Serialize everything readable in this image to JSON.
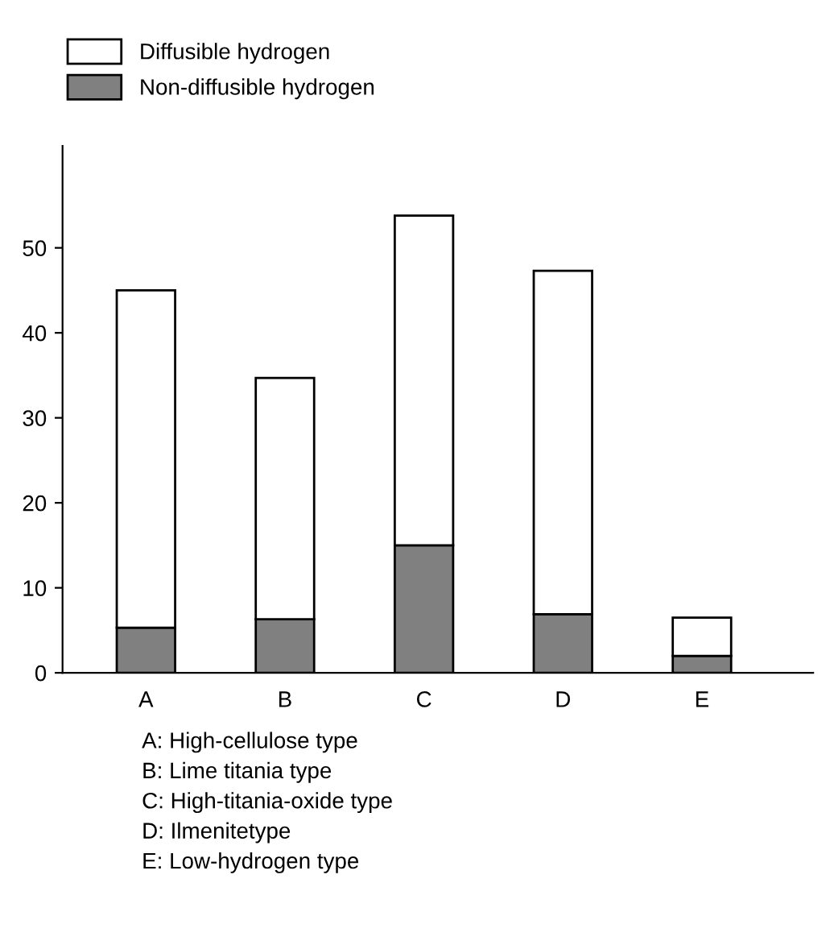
{
  "chart_data": {
    "type": "bar",
    "stacked": true,
    "categories": [
      "A",
      "B",
      "C",
      "D",
      "E"
    ],
    "series": [
      {
        "name": "Non-diffusible hydrogen",
        "color": "#808080",
        "values": [
          5.3,
          6.3,
          15.0,
          6.9,
          2.0
        ]
      },
      {
        "name": "Diffusible hydrogen",
        "color": "#ffffff",
        "values": [
          39.7,
          28.4,
          38.8,
          40.4,
          4.5
        ]
      }
    ],
    "ylim": [
      0,
      62
    ],
    "yticks": [
      0,
      10,
      20,
      30,
      40,
      50
    ],
    "grid": false,
    "legend": "top left",
    "annotations": [
      "A: High-cellulose type",
      "B: Lime titania type",
      "C: High-titania-oxide type",
      "D: Ilmenitetype",
      "E: Low-hydrogen type"
    ]
  }
}
